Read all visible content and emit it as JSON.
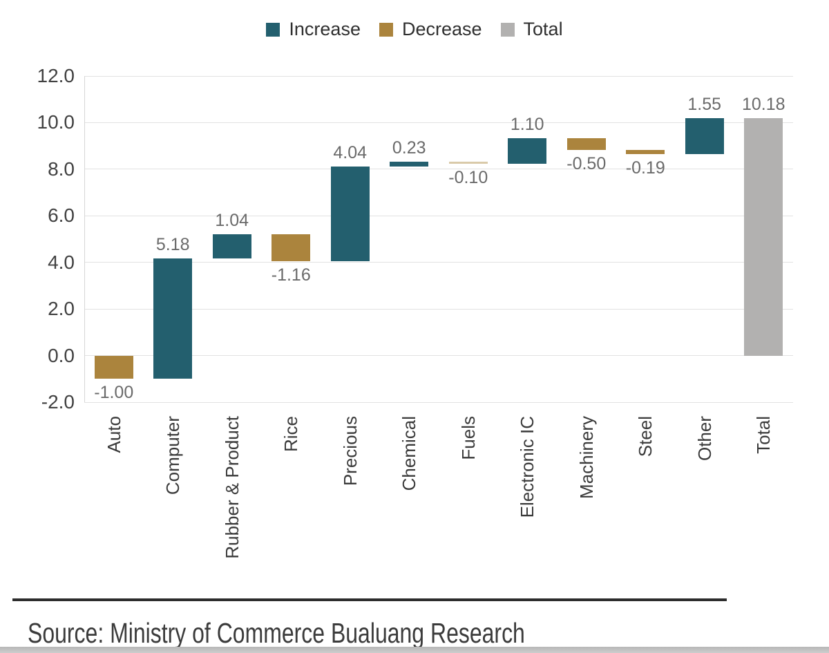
{
  "legend": {
    "items": [
      {
        "key": "increase",
        "label": "Increase",
        "color": "#235f6e"
      },
      {
        "key": "decrease",
        "label": "Decrease",
        "color": "#ab843d"
      },
      {
        "key": "total",
        "label": "Total",
        "color": "#b2b1b0"
      }
    ]
  },
  "chart_data": {
    "type": "bar",
    "subtype": "waterfall",
    "categories": [
      "Auto",
      "Computer",
      "Rubber & Product",
      "Rice",
      "Precious",
      "Chemical",
      "Fuels",
      "Electronic IC",
      "Machinery",
      "Steel",
      "Other",
      "Total"
    ],
    "values": [
      -1.0,
      5.18,
      1.04,
      -1.16,
      4.04,
      0.23,
      -0.1,
      1.1,
      -0.5,
      -0.19,
      1.55,
      10.18
    ],
    "value_labels": [
      "-1.00",
      "5.18",
      "1.04",
      "-1.16",
      "4.04",
      "0.23",
      "-0.10",
      "1.10",
      "-0.50",
      "-0.19",
      "1.55",
      "10.18"
    ],
    "bar_types": [
      "decrease",
      "increase",
      "increase",
      "decrease",
      "increase",
      "increase",
      "decrease",
      "increase",
      "decrease",
      "decrease",
      "increase",
      "total"
    ],
    "y_ticks": [
      12.0,
      10.0,
      8.0,
      6.0,
      4.0,
      2.0,
      0.0,
      -2.0
    ],
    "y_tick_labels": [
      "12.0",
      "10.0",
      "8.0",
      "6.0",
      "4.0",
      "2.0",
      "0.0",
      "-2.0"
    ],
    "ylim": [
      -2.0,
      12.0
    ],
    "grid": true,
    "legend_position": "top-center",
    "colors": {
      "increase": "#235f6e",
      "decrease": "#ab843d",
      "total": "#b2b1b0"
    },
    "bar_color_overrides": {
      "Fuels": "#d9caa9"
    }
  },
  "footer": {
    "source": "Source: Ministry of Commerce Bualuang Research"
  }
}
